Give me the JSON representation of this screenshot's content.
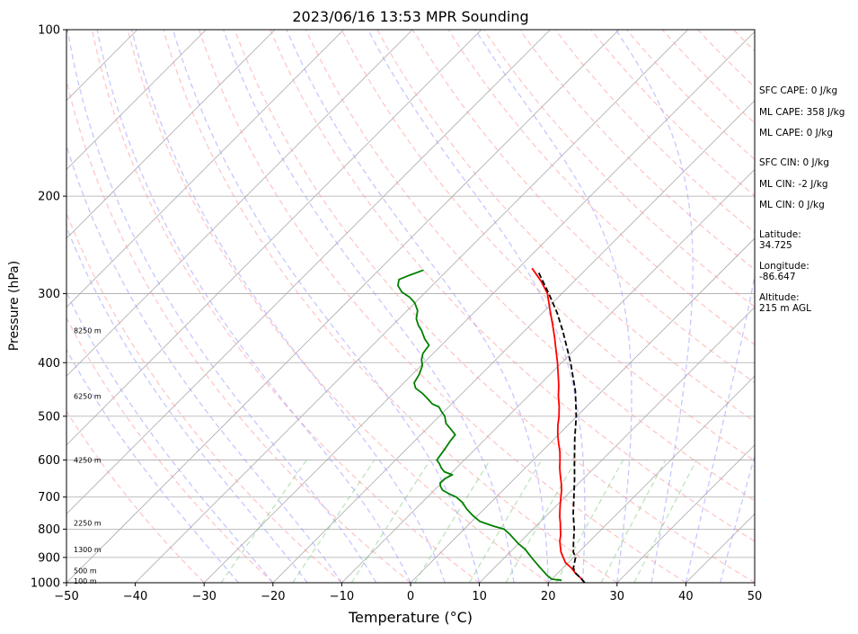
{
  "chart_data": {
    "type": "line",
    "title": "2023/06/16 13:53 MPR Sounding",
    "xlabel": "Temperature (°C)",
    "ylabel": "Pressure (hPa)",
    "xlim": [
      -50,
      50
    ],
    "ylim": [
      1000,
      100
    ],
    "y_scale": "log",
    "grid": true,
    "x_ticks": [
      -50,
      -40,
      -30,
      -20,
      -10,
      0,
      10,
      20,
      30,
      40,
      50
    ],
    "x_tick_labels": [
      "−50",
      "−40",
      "−30",
      "−20",
      "−10",
      "0",
      "10",
      "20",
      "30",
      "40",
      "50"
    ],
    "y_ticks": [
      1000,
      900,
      800,
      700,
      600,
      500,
      400,
      300,
      200,
      100
    ],
    "y_tick_labels": [
      "1000",
      "900",
      "800",
      "700",
      "600",
      "500",
      "400",
      "300",
      "200",
      "100"
    ],
    "series": [
      {
        "color": "#ff0000",
        "x_unit": "°C",
        "points": [
          [
            25.3,
            1000
          ],
          [
            24.0,
            980
          ],
          [
            22.5,
            960
          ],
          [
            21.2,
            940
          ],
          [
            19.6,
            920
          ],
          [
            18.5,
            900
          ],
          [
            17.4,
            880
          ],
          [
            16.5,
            860
          ],
          [
            15.6,
            840
          ],
          [
            14.9,
            820
          ],
          [
            14.0,
            800
          ],
          [
            13.1,
            780
          ],
          [
            12.1,
            760
          ],
          [
            11.2,
            740
          ],
          [
            10.3,
            720
          ],
          [
            9.4,
            700
          ],
          [
            8.5,
            680
          ],
          [
            7.4,
            660
          ],
          [
            6.2,
            640
          ],
          [
            5.0,
            620
          ],
          [
            3.9,
            600
          ],
          [
            2.7,
            580
          ],
          [
            1.3,
            560
          ],
          [
            -0.1,
            540
          ],
          [
            -1.4,
            520
          ],
          [
            -2.6,
            500
          ],
          [
            -4.0,
            480
          ],
          [
            -5.6,
            460
          ],
          [
            -7.1,
            440
          ],
          [
            -8.8,
            420
          ],
          [
            -10.6,
            400
          ],
          [
            -12.6,
            380
          ],
          [
            -14.7,
            360
          ],
          [
            -17.0,
            340
          ],
          [
            -19.5,
            320
          ],
          [
            -22.1,
            300
          ],
          [
            -24.8,
            285
          ],
          [
            -28.0,
            270
          ]
        ]
      },
      {
        "color": "#008000",
        "x_unit": "°C",
        "points": [
          [
            21.6,
            990
          ],
          [
            20.0,
            985
          ],
          [
            18.8,
            970
          ],
          [
            17.4,
            950
          ],
          [
            16.0,
            930
          ],
          [
            14.6,
            910
          ],
          [
            13.2,
            890
          ],
          [
            11.8,
            870
          ],
          [
            10.0,
            850
          ],
          [
            8.4,
            830
          ],
          [
            7.2,
            815
          ],
          [
            5.8,
            800
          ],
          [
            3.8,
            790
          ],
          [
            1.2,
            775
          ],
          [
            -0.8,
            755
          ],
          [
            -2.6,
            735
          ],
          [
            -4.2,
            715
          ],
          [
            -5.8,
            700
          ],
          [
            -7.4,
            690
          ],
          [
            -8.8,
            680
          ],
          [
            -9.6,
            670
          ],
          [
            -10.2,
            660
          ],
          [
            -10.1,
            648
          ],
          [
            -9.6,
            638
          ],
          [
            -11.2,
            630
          ],
          [
            -12.2,
            620
          ],
          [
            -13.2,
            608
          ],
          [
            -14.0,
            600
          ],
          [
            -14.2,
            588
          ],
          [
            -14.4,
            575
          ],
          [
            -14.8,
            555
          ],
          [
            -15.0,
            540
          ],
          [
            -16.4,
            528
          ],
          [
            -18.0,
            515
          ],
          [
            -19.2,
            500
          ],
          [
            -20.4,
            490
          ],
          [
            -21.4,
            481
          ],
          [
            -22.8,
            475
          ],
          [
            -24.2,
            465
          ],
          [
            -25.7,
            455
          ],
          [
            -27.5,
            445
          ],
          [
            -28.5,
            435
          ],
          [
            -29.0,
            420
          ],
          [
            -29.8,
            405
          ],
          [
            -30.8,
            395
          ],
          [
            -31.5,
            385
          ],
          [
            -31.8,
            372
          ],
          [
            -33.4,
            362
          ],
          [
            -35.0,
            350
          ],
          [
            -36.3,
            342
          ],
          [
            -37.5,
            333
          ],
          [
            -38.5,
            322
          ],
          [
            -40.0,
            312
          ],
          [
            -41.5,
            305
          ],
          [
            -43.5,
            298
          ],
          [
            -45.0,
            290
          ],
          [
            -45.7,
            283
          ],
          [
            -44.8,
            278
          ],
          [
            -43.5,
            272
          ]
        ]
      },
      {
        "color": "#000000",
        "dashed": true,
        "x_unit": "°C",
        "points": [
          [
            25.3,
            1000
          ],
          [
            24.0,
            980
          ],
          [
            22.5,
            960
          ],
          [
            21.5,
            940
          ],
          [
            20.9,
            920
          ],
          [
            20.3,
            900
          ],
          [
            19.2,
            880
          ],
          [
            18.0,
            850
          ],
          [
            16.0,
            800
          ],
          [
            13.6,
            750
          ],
          [
            11.3,
            700
          ],
          [
            8.8,
            650
          ],
          [
            6.0,
            600
          ],
          [
            3.0,
            550
          ],
          [
            -0.1,
            500
          ],
          [
            -3.9,
            450
          ],
          [
            -8.7,
            400
          ],
          [
            -11.5,
            375
          ],
          [
            -14.5,
            350
          ],
          [
            -17.9,
            325
          ],
          [
            -21.9,
            300
          ],
          [
            -26.4,
            275
          ]
        ]
      }
    ],
    "height_labels": [
      "8250 m",
      "6250 m",
      "4250 m",
      "2250 m",
      "1300 m",
      "500 m",
      "100 m"
    ],
    "height_label_pressures": [
      350,
      460,
      600,
      780,
      870,
      950,
      992
    ]
  },
  "info": {
    "sfc_cape": "SFC CAPE: 0 J/kg",
    "ml_cape_1": "ML CAPE: 358 J/kg",
    "ml_cape_2": "ML CAPE: 0 J/kg",
    "sfc_cin": "SFC CIN: 0 J/kg",
    "ml_cin_1": "ML CIN: -2 J/kg",
    "ml_cin_2": "ML CIN: 0 J/kg",
    "latitude_label": "Latitude:",
    "latitude_value": "34.725",
    "longitude_label": "Longitude:",
    "longitude_value": "-86.647",
    "altitude_label": "Altitude:",
    "altitude_value": "215 m AGL"
  },
  "colors": {
    "temperature": "#ff0000",
    "dewpoint": "#008000",
    "parcel": "#000000",
    "isotherm": "#aaaaaa",
    "dry_adiabat": "#ff9999",
    "moist_adiabat": "#9999ff",
    "mixing_ratio": "#88cc88",
    "isobar": "#aaaaaa"
  }
}
